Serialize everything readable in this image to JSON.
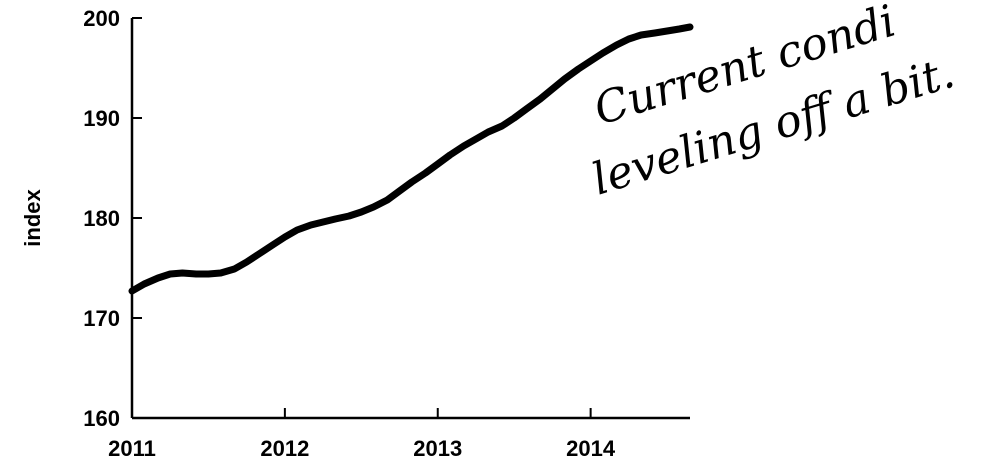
{
  "chart_data": {
    "type": "line",
    "title": "",
    "xlabel": "",
    "ylabel": "index",
    "xlim": [
      2011,
      2014.65
    ],
    "ylim": [
      160,
      200
    ],
    "x_ticks": [
      2011,
      2012,
      2013,
      2014
    ],
    "x_tick_labels": [
      "2011",
      "2012",
      "2013",
      "2014"
    ],
    "y_ticks": [
      160,
      170,
      180,
      190,
      200
    ],
    "y_tick_labels": [
      "160",
      "170",
      "180",
      "190",
      "200"
    ],
    "grid": false,
    "legend": "none",
    "series": [
      {
        "color": "#000000",
        "x": [
          2011.0,
          2011.08,
          2011.17,
          2011.25,
          2011.33,
          2011.42,
          2011.5,
          2011.58,
          2011.67,
          2011.75,
          2011.83,
          2011.92,
          2012.0,
          2012.08,
          2012.17,
          2012.25,
          2012.33,
          2012.42,
          2012.5,
          2012.58,
          2012.67,
          2012.75,
          2012.83,
          2012.92,
          2013.0,
          2013.08,
          2013.17,
          2013.25,
          2013.33,
          2013.42,
          2013.5,
          2013.58,
          2013.67,
          2013.75,
          2013.83,
          2013.92,
          2014.0,
          2014.08,
          2014.17,
          2014.25,
          2014.33,
          2014.42,
          2014.5,
          2014.58,
          2014.65
        ],
        "y": [
          172.7,
          173.4,
          174.0,
          174.4,
          174.5,
          174.4,
          174.4,
          174.5,
          174.9,
          175.6,
          176.4,
          177.3,
          178.1,
          178.8,
          179.3,
          179.6,
          179.9,
          180.2,
          180.6,
          181.1,
          181.8,
          182.7,
          183.6,
          184.5,
          185.4,
          186.3,
          187.2,
          187.9,
          188.6,
          189.2,
          190.0,
          190.9,
          191.9,
          192.9,
          193.9,
          194.9,
          195.7,
          196.5,
          197.3,
          197.9,
          198.3,
          198.5,
          198.7,
          198.9,
          199.1
        ]
      }
    ],
    "annotations": [
      "Current condi",
      "leveling off a bit."
    ]
  }
}
